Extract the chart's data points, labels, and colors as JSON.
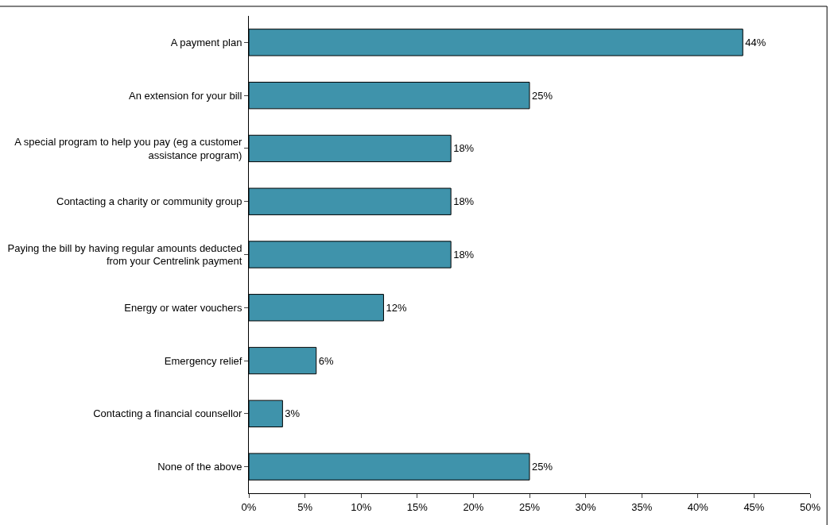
{
  "chart_data": {
    "type": "bar",
    "orientation": "horizontal",
    "categories": [
      "A payment plan",
      "An extension for your bill",
      "A special program to help you pay (eg a customer assistance program)",
      "Contacting a charity or community group",
      "Paying the bill by having regular amounts deducted from your Centrelink payment",
      "Energy or water vouchers",
      "Emergency relief",
      "Contacting a financial counsellor",
      "None of the above"
    ],
    "values": [
      44,
      25,
      18,
      18,
      18,
      12,
      6,
      3,
      25
    ],
    "value_labels": [
      "44%",
      "25%",
      "18%",
      "18%",
      "18%",
      "12%",
      "6%",
      "3%",
      "25%"
    ],
    "color": "#3f93ab",
    "xlim": [
      0,
      50
    ],
    "xticks": [
      {
        "value": 0,
        "label": "0%"
      },
      {
        "value": 5,
        "label": "5%"
      },
      {
        "value": 10,
        "label": "10%"
      },
      {
        "value": 15,
        "label": "15%"
      },
      {
        "value": 20,
        "label": "20%"
      },
      {
        "value": 25,
        "label": "25%"
      },
      {
        "value": 30,
        "label": "30%"
      },
      {
        "value": 35,
        "label": "35%"
      },
      {
        "value": 40,
        "label": "40%"
      },
      {
        "value": 45,
        "label": "45%"
      },
      {
        "value": 50,
        "label": "50%"
      }
    ],
    "grid": false
  }
}
